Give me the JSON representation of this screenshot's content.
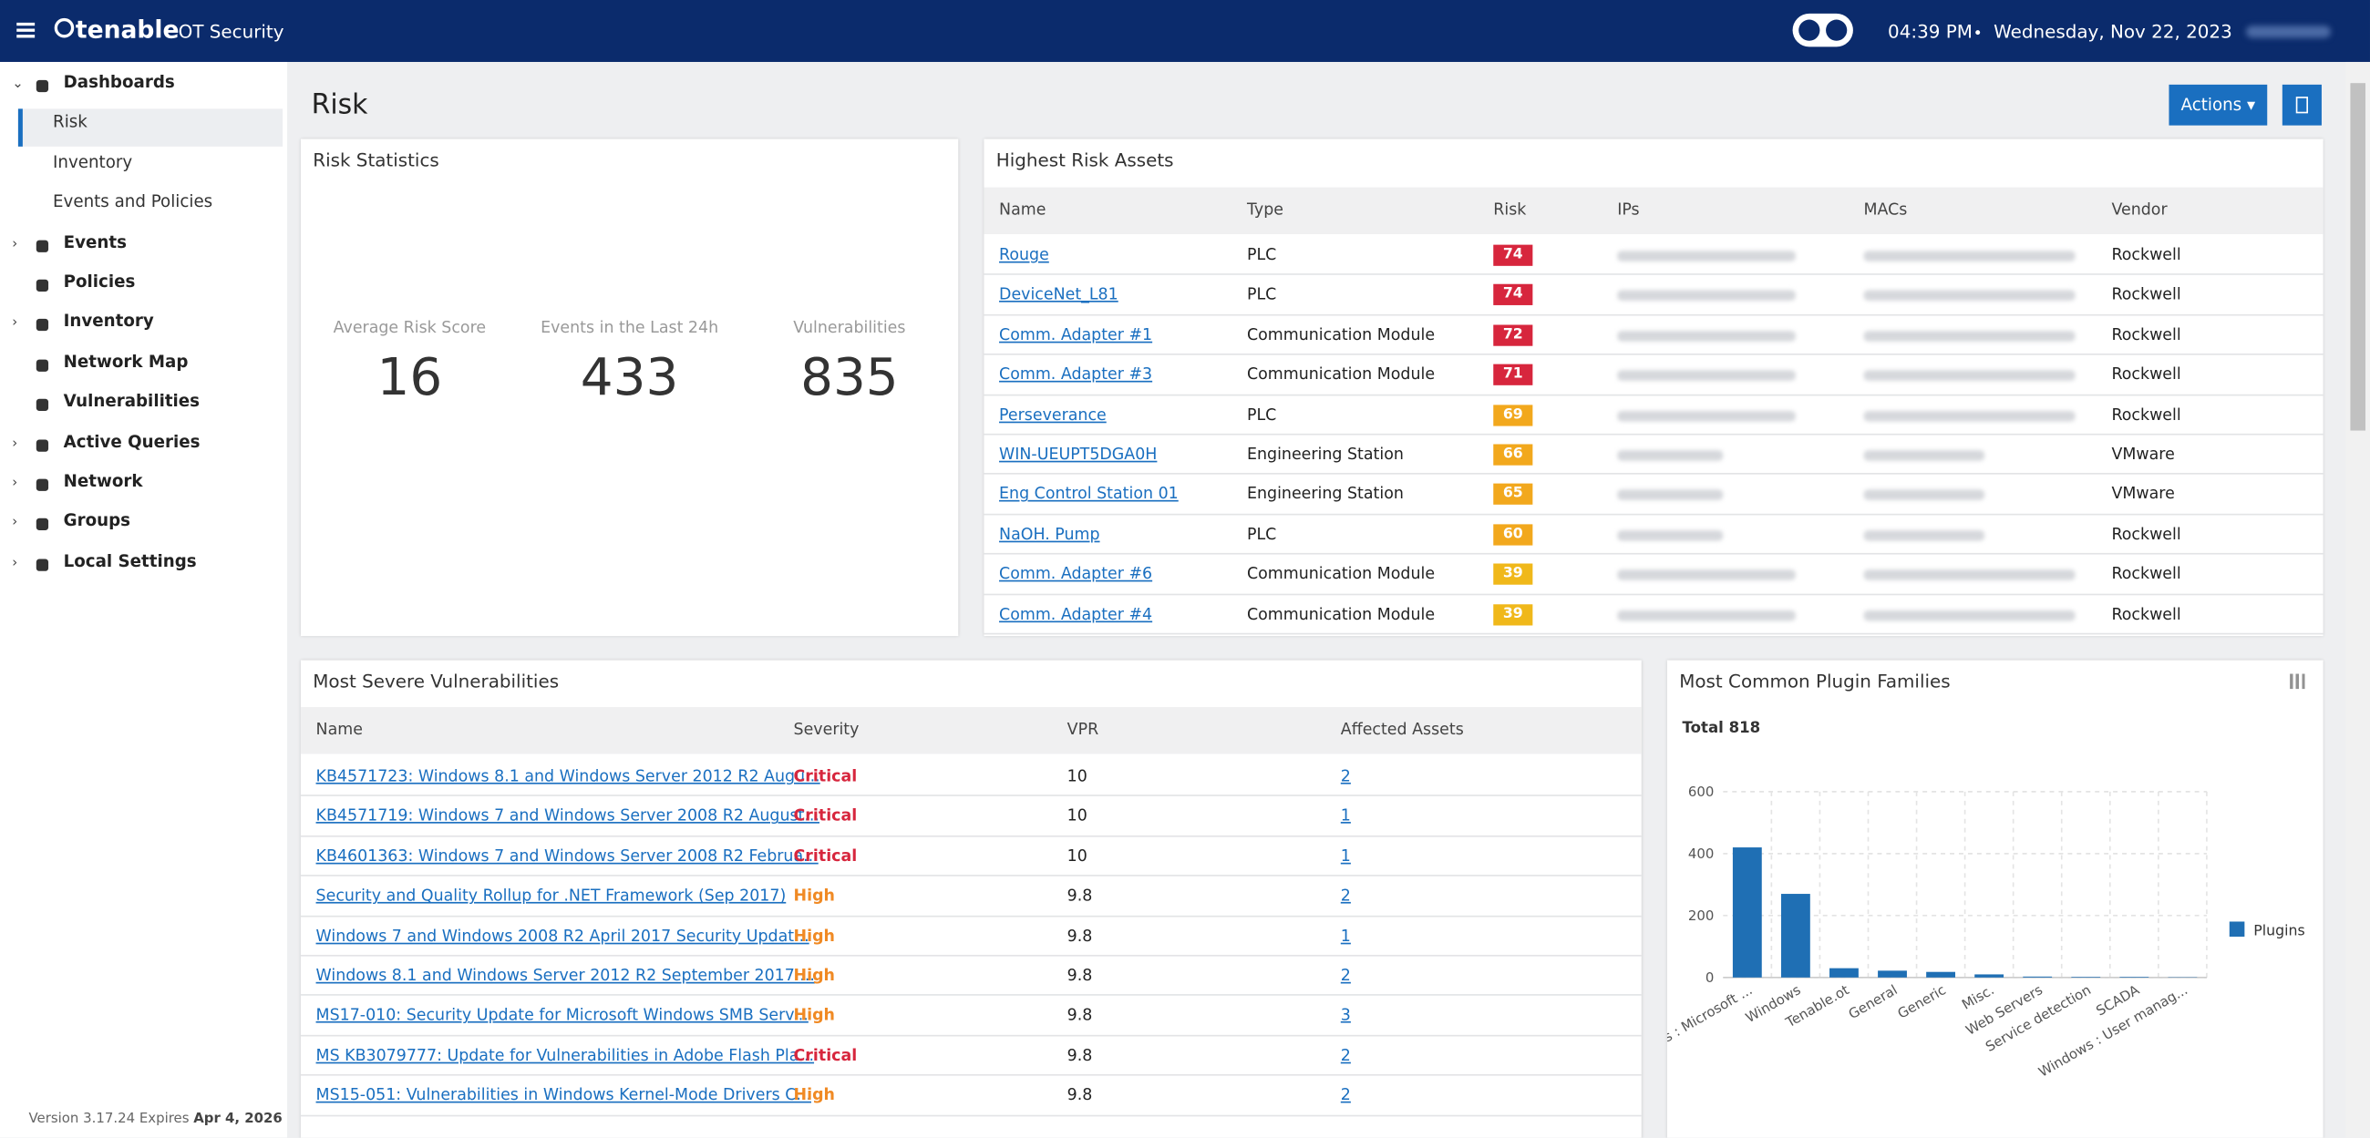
{
  "header": {
    "brand": "tenable",
    "product": "OT Security",
    "time": "04:39 PM",
    "date": "Wednesday, Nov 22, 2023"
  },
  "sidebar": {
    "items": [
      {
        "label": "Dashboards",
        "level": 0,
        "arrow": "open"
      },
      {
        "label": "Risk",
        "level": 1,
        "active": true
      },
      {
        "label": "Inventory",
        "level": 1
      },
      {
        "label": "Events and Policies",
        "level": 1
      },
      {
        "label": "Events",
        "level": 0,
        "arrow": "closed"
      },
      {
        "label": "Policies",
        "level": 0
      },
      {
        "label": "Inventory",
        "level": 0,
        "arrow": "closed"
      },
      {
        "label": "Network Map",
        "level": 0
      },
      {
        "label": "Vulnerabilities",
        "level": 0
      },
      {
        "label": "Active Queries",
        "level": 0,
        "arrow": "closed"
      },
      {
        "label": "Network",
        "level": 0,
        "arrow": "closed"
      },
      {
        "label": "Groups",
        "level": 0,
        "arrow": "closed"
      },
      {
        "label": "Local Settings",
        "level": 0,
        "arrow": "closed"
      }
    ],
    "version": "Version 3.17.24 Expires",
    "expires": "Apr 4, 2026"
  },
  "page": {
    "title": "Risk",
    "actions": "Actions"
  },
  "risk_statistics": {
    "title": "Risk Statistics",
    "stats": [
      {
        "label": "Average Risk Score",
        "value": 16
      },
      {
        "label": "Events in the Last 24h",
        "value": 433
      },
      {
        "label": "Vulnerabilities",
        "value": 835
      }
    ]
  },
  "highest_risk_assets": {
    "title": "Highest Risk Assets",
    "columns": [
      "Name",
      "Type",
      "Risk",
      "IPs",
      "MACs",
      "Vendor"
    ],
    "rows": [
      {
        "name": "Rouge",
        "type": "PLC",
        "risk": 74,
        "risk_color": "#d7263d",
        "vendor": "Rockwell"
      },
      {
        "name": "DeviceNet_L81",
        "type": "PLC",
        "risk": 74,
        "risk_color": "#d7263d",
        "vendor": "Rockwell"
      },
      {
        "name": "Comm. Adapter #1",
        "type": "Communication Module",
        "risk": 72,
        "risk_color": "#d7263d",
        "vendor": "Rockwell"
      },
      {
        "name": "Comm. Adapter #3",
        "type": "Communication Module",
        "risk": 71,
        "risk_color": "#d7263d",
        "vendor": "Rockwell"
      },
      {
        "name": "Perseverance",
        "type": "PLC",
        "risk": 69,
        "risk_color": "#f2a81d",
        "vendor": "Rockwell"
      },
      {
        "name": "WIN-UEUPT5DGA0H",
        "type": "Engineering Station",
        "risk": 66,
        "risk_color": "#f2a81d",
        "vendor": "VMware"
      },
      {
        "name": "Eng Control Station 01",
        "type": "Engineering Station",
        "risk": 65,
        "risk_color": "#f2a81d",
        "vendor": "VMware"
      },
      {
        "name": "NaOH. Pump",
        "type": "PLC",
        "risk": 60,
        "risk_color": "#f2a81d",
        "vendor": "Rockwell"
      },
      {
        "name": "Comm. Adapter #6",
        "type": "Communication Module",
        "risk": 39,
        "risk_color": "#f0b81a",
        "vendor": "Rockwell"
      },
      {
        "name": "Comm. Adapter #4",
        "type": "Communication Module",
        "risk": 39,
        "risk_color": "#f0b81a",
        "vendor": "Rockwell"
      }
    ]
  },
  "vulnerabilities": {
    "title": "Most Severe Vulnerabilities",
    "columns": [
      "Name",
      "Severity",
      "VPR",
      "Affected Assets"
    ],
    "rows": [
      {
        "name": "KB4571723: Windows 8.1 and Windows Server 2012 R2 Augu...",
        "severity": "Critical",
        "severity_color": "#d7263d",
        "vpr": 10,
        "affected": 2
      },
      {
        "name": "KB4571719: Windows 7 and Windows Server 2008 R2 August...",
        "severity": "Critical",
        "severity_color": "#d7263d",
        "vpr": 10,
        "affected": 1
      },
      {
        "name": "KB4601363: Windows 7 and Windows Server 2008 R2 Februa...",
        "severity": "Critical",
        "severity_color": "#d7263d",
        "vpr": 10,
        "affected": 1
      },
      {
        "name": "Security and Quality Rollup for .NET Framework (Sep 2017)",
        "severity": "High",
        "severity_color": "#f08a24",
        "vpr": 9.8,
        "affected": 2
      },
      {
        "name": "Windows 7 and Windows 2008 R2 April 2017 Security Updat...",
        "severity": "High",
        "severity_color": "#f08a24",
        "vpr": 9.8,
        "affected": 1
      },
      {
        "name": "Windows 8.1 and Windows Server 2012 R2 September 2017 ...",
        "severity": "High",
        "severity_color": "#f08a24",
        "vpr": 9.8,
        "affected": 2
      },
      {
        "name": "MS17-010: Security Update for Microsoft Windows SMB Serv...",
        "severity": "High",
        "severity_color": "#f08a24",
        "vpr": 9.8,
        "affected": 3
      },
      {
        "name": "MS KB3079777: Update for Vulnerabilities in Adobe Flash Pla...",
        "severity": "Critical",
        "severity_color": "#d7263d",
        "vpr": 9.8,
        "affected": 2
      },
      {
        "name": "MS15-051: Vulnerabilities in Windows Kernel-Mode Drivers C...",
        "severity": "High",
        "severity_color": "#f08a24",
        "vpr": 9.8,
        "affected": 2
      }
    ]
  },
  "chart_data": {
    "type": "bar",
    "title": "Most Common Plugin Families",
    "subtitle": "Total 818",
    "categories": [
      "s : Microsoft ...",
      "Windows",
      "Tenable.ot",
      "General",
      "Generic",
      "Misc.",
      "Web Servers",
      "Service detection",
      "SCADA",
      "Windows : User manag..."
    ],
    "series": [
      {
        "name": "Plugins",
        "color": "#1f6fb4",
        "values": [
          420,
          270,
          30,
          22,
          18,
          10,
          3,
          2,
          2,
          1
        ]
      }
    ],
    "ylim": [
      0,
      600
    ],
    "yticks": [
      0,
      200,
      400,
      600
    ],
    "grid": true,
    "legend": "right"
  }
}
